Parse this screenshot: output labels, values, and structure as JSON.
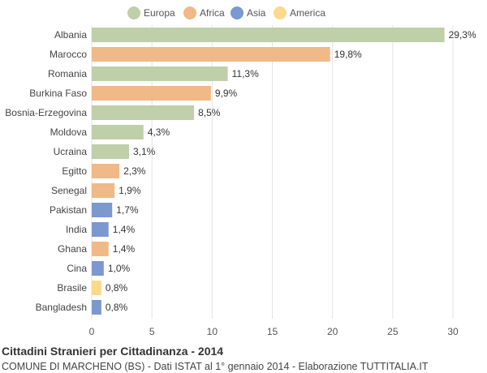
{
  "chart_data": {
    "type": "bar",
    "orientation": "horizontal",
    "title": "Cittadini Stranieri per Cittadinanza - 2014",
    "subtitle": "COMUNE DI MARCHENO (BS) - Dati ISTAT al 1° gennaio 2014 - Elaborazione TUTTITALIA.IT",
    "xlim": [
      0,
      30
    ],
    "xticks": [
      "0",
      "5",
      "10",
      "15",
      "20",
      "25",
      "30"
    ],
    "grid": true,
    "legend_position": "top",
    "legend": [
      {
        "name": "Europa",
        "color": "#bfcfaa"
      },
      {
        "name": "Africa",
        "color": "#f0b987"
      },
      {
        "name": "Asia",
        "color": "#7b98cf"
      },
      {
        "name": "America",
        "color": "#fcd98c"
      }
    ],
    "categories": [
      "Albania",
      "Marocco",
      "Romania",
      "Burkina Faso",
      "Bosnia-Erzegovina",
      "Moldova",
      "Ucraina",
      "Egitto",
      "Senegal",
      "Pakistan",
      "India",
      "Ghana",
      "Cina",
      "Brasile",
      "Bangladesh"
    ],
    "values": [
      29.3,
      19.8,
      11.3,
      9.9,
      8.5,
      4.3,
      3.1,
      2.3,
      1.9,
      1.7,
      1.4,
      1.4,
      1.0,
      0.8,
      0.8
    ],
    "value_labels": [
      "29,3%",
      "19,8%",
      "11,3%",
      "9,9%",
      "8,5%",
      "4,3%",
      "3,1%",
      "2,3%",
      "1,9%",
      "1,7%",
      "1,4%",
      "1,4%",
      "1,0%",
      "0,8%",
      "0,8%"
    ],
    "continent": [
      "Europa",
      "Africa",
      "Europa",
      "Africa",
      "Europa",
      "Europa",
      "Europa",
      "Africa",
      "Africa",
      "Asia",
      "Asia",
      "Africa",
      "Asia",
      "America",
      "Asia"
    ]
  }
}
